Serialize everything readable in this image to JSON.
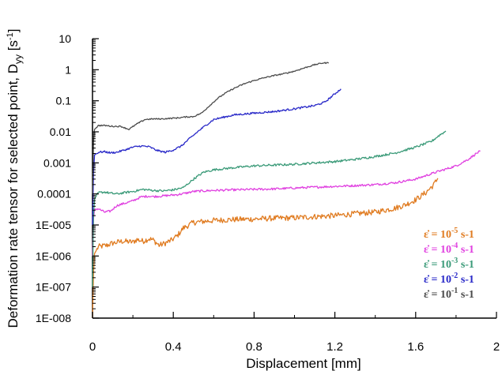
{
  "chart_data": {
    "type": "line",
    "xlabel": "Displacement  [mm]",
    "ylabel": "Deformation rate tensor for selected point, D",
    "ylabel_sub": "yy",
    "ylabel_unit_open": " [s",
    "ylabel_unit_sup": "-1",
    "ylabel_unit_close": "]",
    "x_ticks": [
      {
        "value": 0,
        "label": "0"
      },
      {
        "value": 0.4,
        "label": "0.4"
      },
      {
        "value": 0.8,
        "label": "0.8"
      },
      {
        "value": 1.2,
        "label": "1.2"
      },
      {
        "value": 1.6,
        "label": "1.6"
      },
      {
        "value": 2,
        "label": "2"
      }
    ],
    "y_ticks": [
      {
        "exp": 1,
        "label": "10"
      },
      {
        "exp": 0,
        "label": "1"
      },
      {
        "exp": -1,
        "label": "0.1"
      },
      {
        "exp": -2,
        "label": "0.01"
      },
      {
        "exp": -3,
        "label": "0.001"
      },
      {
        "exp": -4,
        "label": "0.0001"
      },
      {
        "exp": -5,
        "label": "1E-005"
      },
      {
        "exp": -6,
        "label": "1E-006"
      },
      {
        "exp": -7,
        "label": "1E-007"
      },
      {
        "exp": -8,
        "label": "1E-008"
      }
    ],
    "xlim": [
      0,
      2
    ],
    "ylim": [
      1e-08,
      10
    ],
    "y_scale": "log",
    "grid": false,
    "legend_position": "bottom-right",
    "series": [
      {
        "name": "10-5 s-1",
        "legend": {
          "prefix": "ε̇ = 10",
          "sup": "-5",
          "suffix": " s-1"
        },
        "color": "#e07b20",
        "noise": 0.09,
        "points": [
          [
            0,
            1e-08
          ],
          [
            0.005,
            3e-07
          ],
          [
            0.01,
            1.2e-06
          ],
          [
            0.03,
            2e-06
          ],
          [
            0.07,
            2.2e-06
          ],
          [
            0.1,
            2.6e-06
          ],
          [
            0.15,
            3e-06
          ],
          [
            0.2,
            2.8e-06
          ],
          [
            0.22,
            3.4e-06
          ],
          [
            0.25,
            3e-06
          ],
          [
            0.28,
            3.6e-06
          ],
          [
            0.3,
            3.3e-06
          ],
          [
            0.33,
            2.2e-06
          ],
          [
            0.36,
            2.6e-06
          ],
          [
            0.39,
            3.2e-06
          ],
          [
            0.42,
            4.5e-06
          ],
          [
            0.45,
            8e-06
          ],
          [
            0.5,
            1.2e-05
          ],
          [
            0.55,
            1.3e-05
          ],
          [
            0.6,
            1.4e-05
          ],
          [
            0.7,
            1.5e-05
          ],
          [
            0.8,
            1.55e-05
          ],
          [
            0.9,
            1.65e-05
          ],
          [
            1.0,
            1.7e-05
          ],
          [
            1.1,
            1.85e-05
          ],
          [
            1.2,
            2e-05
          ],
          [
            1.3,
            2.3e-05
          ],
          [
            1.4,
            2.6e-05
          ],
          [
            1.5,
            3.5e-05
          ],
          [
            1.55,
            4.5e-05
          ],
          [
            1.6,
            6.5e-05
          ],
          [
            1.65,
            0.00011
          ],
          [
            1.69,
            0.0002
          ],
          [
            1.71,
            0.00032
          ]
        ]
      },
      {
        "name": "10-4 s-1",
        "legend": {
          "prefix": "ε̇ = 10",
          "sup": "-4",
          "suffix": " s-1"
        },
        "color": "#e040e0",
        "noise": 0.035,
        "points": [
          [
            0,
            1e-06
          ],
          [
            0.005,
            1.6e-05
          ],
          [
            0.01,
            3.2e-05
          ],
          [
            0.03,
            3.3e-05
          ],
          [
            0.06,
            2.6e-05
          ],
          [
            0.09,
            2.8e-05
          ],
          [
            0.12,
            4.2e-05
          ],
          [
            0.16,
            5e-05
          ],
          [
            0.2,
            6e-05
          ],
          [
            0.24,
            8e-05
          ],
          [
            0.28,
            8.5e-05
          ],
          [
            0.3,
            8.2e-05
          ],
          [
            0.34,
            8.5e-05
          ],
          [
            0.38,
            9e-05
          ],
          [
            0.42,
            9.5e-05
          ],
          [
            0.46,
            0.000105
          ],
          [
            0.5,
            0.00012
          ],
          [
            0.6,
            0.00013
          ],
          [
            0.7,
            0.000135
          ],
          [
            0.8,
            0.00014
          ],
          [
            0.9,
            0.000145
          ],
          [
            1.0,
            0.000155
          ],
          [
            1.1,
            0.000165
          ],
          [
            1.2,
            0.000175
          ],
          [
            1.3,
            0.000185
          ],
          [
            1.4,
            0.0002
          ],
          [
            1.5,
            0.00023
          ],
          [
            1.6,
            0.0003
          ],
          [
            1.7,
            0.0005
          ],
          [
            1.8,
            0.0008
          ],
          [
            1.86,
            0.0013
          ],
          [
            1.9,
            0.002
          ],
          [
            1.92,
            0.0024
          ]
        ]
      },
      {
        "name": "10-3 s-1",
        "legend": {
          "prefix": "ε̇ = 10",
          "sup": "-3",
          "suffix": " s-1"
        },
        "color": "#3a9a78",
        "noise": 0.035,
        "points": [
          [
            0,
            1e-07
          ],
          [
            0.005,
            2e-05
          ],
          [
            0.01,
            7e-05
          ],
          [
            0.03,
            0.00011
          ],
          [
            0.06,
            0.000115
          ],
          [
            0.09,
            0.000105
          ],
          [
            0.12,
            0.0001
          ],
          [
            0.16,
            0.00011
          ],
          [
            0.2,
            0.00012
          ],
          [
            0.25,
            0.00014
          ],
          [
            0.3,
            0.00013
          ],
          [
            0.35,
            0.000125
          ],
          [
            0.4,
            0.000135
          ],
          [
            0.45,
            0.00016
          ],
          [
            0.5,
            0.0003
          ],
          [
            0.55,
            0.0005
          ],
          [
            0.6,
            0.0006
          ],
          [
            0.7,
            0.0007
          ],
          [
            0.8,
            0.0008
          ],
          [
            0.9,
            0.00085
          ],
          [
            1.0,
            0.0009
          ],
          [
            1.1,
            0.001
          ],
          [
            1.2,
            0.0011
          ],
          [
            1.3,
            0.0013
          ],
          [
            1.4,
            0.0016
          ],
          [
            1.5,
            0.0021
          ],
          [
            1.6,
            0.0032
          ],
          [
            1.68,
            0.005
          ],
          [
            1.72,
            0.008
          ],
          [
            1.75,
            0.0105
          ]
        ]
      },
      {
        "name": "10-2 s-1",
        "legend": {
          "prefix": "ε̇ = 10",
          "sup": "-2",
          "suffix": " s-1"
        },
        "color": "#2828c8",
        "noise": 0.03,
        "points": [
          [
            0,
            1e-05
          ],
          [
            0.005,
            0.0005
          ],
          [
            0.01,
            0.0018
          ],
          [
            0.03,
            0.0022
          ],
          [
            0.06,
            0.0023
          ],
          [
            0.09,
            0.0021
          ],
          [
            0.12,
            0.0022
          ],
          [
            0.16,
            0.0026
          ],
          [
            0.2,
            0.0032
          ],
          [
            0.24,
            0.0035
          ],
          [
            0.28,
            0.0033
          ],
          [
            0.32,
            0.0025
          ],
          [
            0.36,
            0.0022
          ],
          [
            0.4,
            0.0026
          ],
          [
            0.44,
            0.0035
          ],
          [
            0.48,
            0.006
          ],
          [
            0.52,
            0.01
          ],
          [
            0.56,
            0.016
          ],
          [
            0.6,
            0.025
          ],
          [
            0.7,
            0.035
          ],
          [
            0.8,
            0.04
          ],
          [
            0.9,
            0.045
          ],
          [
            1.0,
            0.055
          ],
          [
            1.1,
            0.07
          ],
          [
            1.15,
            0.09
          ],
          [
            1.18,
            0.13
          ],
          [
            1.21,
            0.19
          ],
          [
            1.23,
            0.24
          ]
        ]
      },
      {
        "name": "10-1 s-1",
        "legend": {
          "prefix": "ε̇ = 10",
          "sup": "-1",
          "suffix": " s-1"
        },
        "color": "#4a4a4a",
        "noise": 0.02,
        "points": [
          [
            0,
            0.0001
          ],
          [
            0.005,
            0.005
          ],
          [
            0.01,
            0.012
          ],
          [
            0.03,
            0.016
          ],
          [
            0.06,
            0.016
          ],
          [
            0.1,
            0.015
          ],
          [
            0.14,
            0.015
          ],
          [
            0.18,
            0.012
          ],
          [
            0.22,
            0.018
          ],
          [
            0.26,
            0.025
          ],
          [
            0.3,
            0.026
          ],
          [
            0.34,
            0.026
          ],
          [
            0.38,
            0.027
          ],
          [
            0.42,
            0.028
          ],
          [
            0.46,
            0.03
          ],
          [
            0.5,
            0.031
          ],
          [
            0.54,
            0.04
          ],
          [
            0.58,
            0.07
          ],
          [
            0.62,
            0.12
          ],
          [
            0.66,
            0.18
          ],
          [
            0.7,
            0.25
          ],
          [
            0.75,
            0.35
          ],
          [
            0.8,
            0.45
          ],
          [
            0.85,
            0.55
          ],
          [
            0.9,
            0.65
          ],
          [
            0.95,
            0.75
          ],
          [
            1.0,
            0.9
          ],
          [
            1.05,
            1.15
          ],
          [
            1.1,
            1.45
          ],
          [
            1.14,
            1.65
          ],
          [
            1.17,
            1.65
          ]
        ]
      }
    ]
  }
}
